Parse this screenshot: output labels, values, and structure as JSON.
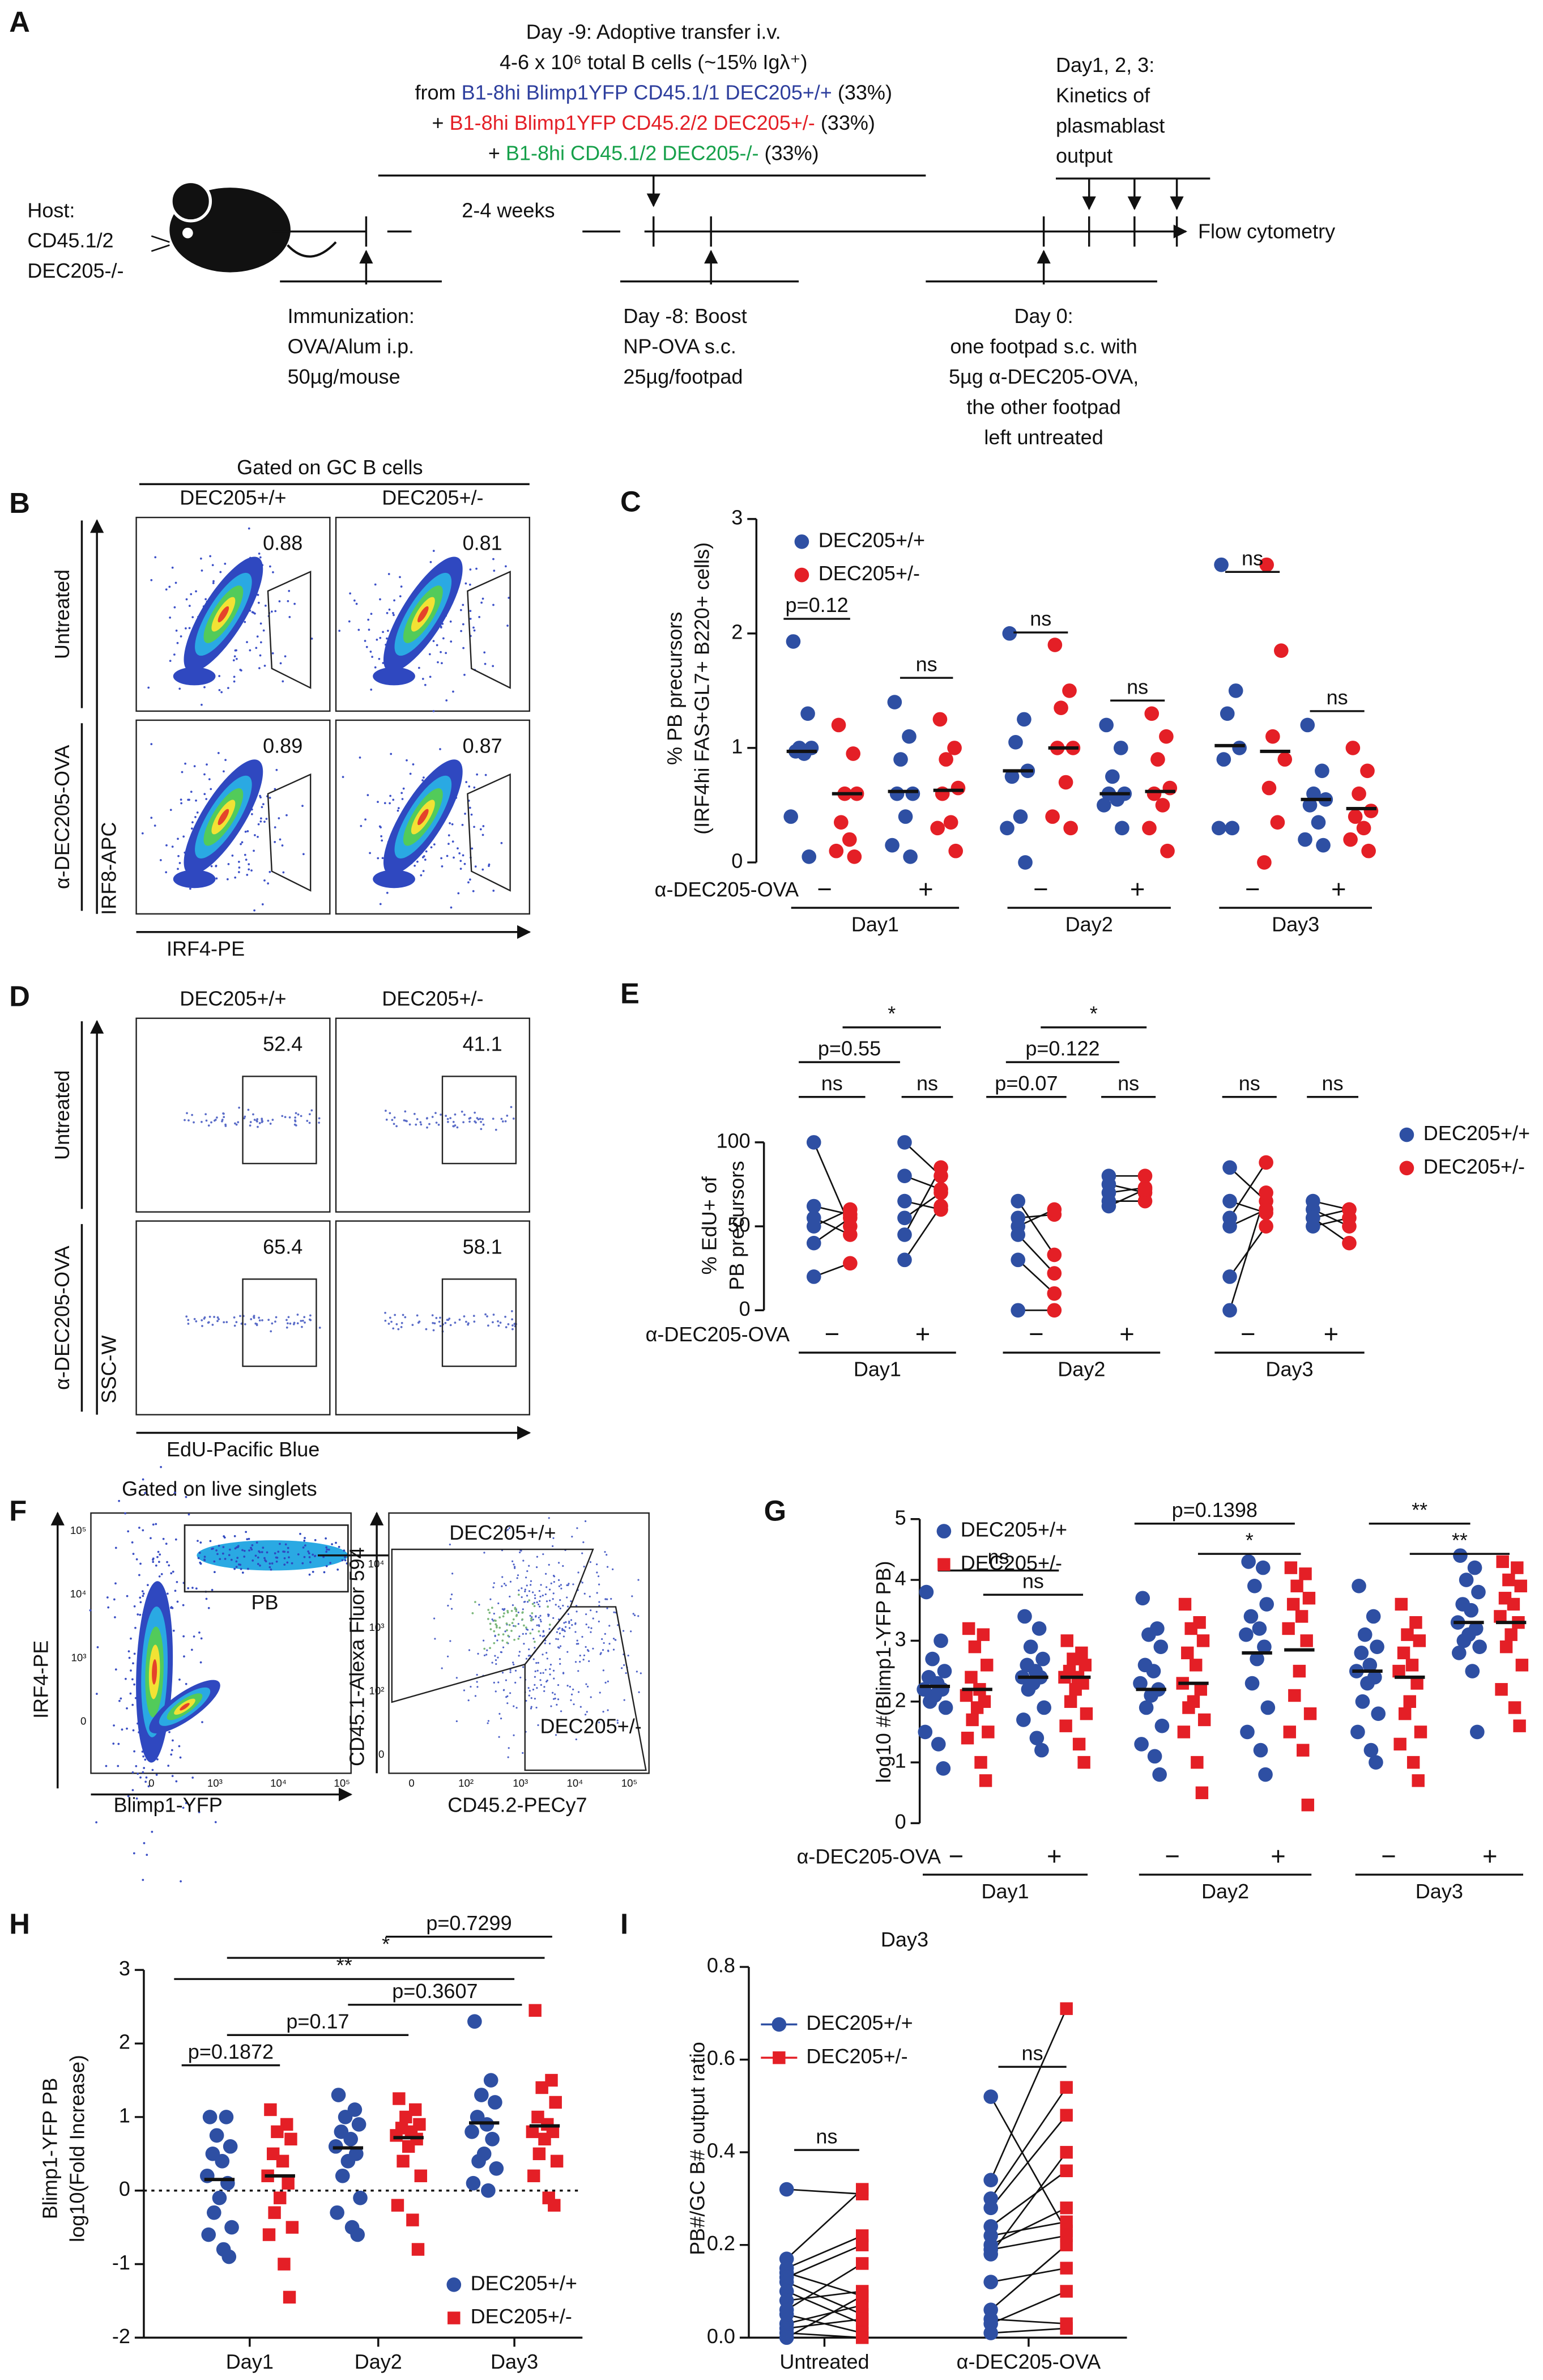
{
  "panel_a": {
    "label": "A",
    "transfer": [
      [
        {
          "text": "Day -9: Adoptive transfer i.v."
        }
      ],
      [
        {
          "text": "4-6 x 10⁶ total B cells (~15% Igλ⁺)"
        }
      ],
      [
        {
          "text": "from "
        },
        {
          "text": "B1-8hi Blimp1YFP CD45.1/1 DEC205+/+",
          "color": "#2e3f9e"
        },
        {
          "text": " (33%)"
        }
      ],
      [
        {
          "text": "+ "
        },
        {
          "text": "B1-8hi Blimp1YFP CD45.2/2 DEC205+/-",
          "color": "#e41f26"
        },
        {
          "text": " (33%)"
        }
      ],
      [
        {
          "text": "+ "
        },
        {
          "text": "B1-8hi CD45.1/2 DEC205-/-",
          "color": "#16a04a"
        },
        {
          "text": " (33%)"
        }
      ]
    ],
    "kinetics": [
      "Day1, 2, 3:",
      "Kinetics of",
      "plasmablast",
      "output"
    ],
    "host": [
      "Host:",
      "CD45.1/2",
      "DEC205-/-"
    ],
    "interval": "2-4 weeks",
    "readout": "Flow cytometry",
    "immunization": [
      "Immunization:",
      "OVA/Alum i.p.",
      "50µg/mouse"
    ],
    "boost": [
      "Day -8: Boost",
      "NP-OVA s.c.",
      "25µg/footpad"
    ],
    "day0": [
      "Day 0:",
      "one footpad s.c. with",
      "5µg α-DEC205-OVA,",
      "the other footpad",
      "left untreated"
    ]
  },
  "panel_b": {
    "label": "B",
    "title": "Gated on GC B cells",
    "columns": [
      "DEC205+/+",
      "DEC205+/-"
    ],
    "rows": [
      "Untreated",
      "α-DEC205-OVA"
    ],
    "y_axis": "IRF8-APC",
    "x_axis": "IRF4-PE",
    "gate_percent": [
      [
        0.88,
        0.81
      ],
      [
        0.89,
        0.87
      ]
    ]
  },
  "panel_d": {
    "label": "D",
    "columns": [
      "DEC205+/+",
      "DEC205+/-"
    ],
    "rows": [
      "Untreated",
      "α-DEC205-OVA"
    ],
    "y_axis": "SSC-W",
    "x_axis": "EdU-Pacific Blue",
    "gate_percent": [
      [
        52.4,
        41.1
      ],
      [
        65.4,
        58.1
      ]
    ]
  },
  "panel_f": {
    "label": "F",
    "title": "Gated on live singlets",
    "left": {
      "y_axis": "IRF4-PE",
      "x_axis": "Blimp1-YFP",
      "gate": "PB",
      "yticks": [
        "10⁵",
        "10⁴",
        "10³",
        "0"
      ],
      "xticks": [
        "0",
        "10³",
        "10⁴",
        "10⁵"
      ]
    },
    "right": {
      "y_axis": "CD45.1-Alexa Fluor 594",
      "x_axis": "CD45.2-PECy7",
      "gates": [
        "DEC205+/+",
        "DEC205+/-"
      ],
      "yticks": [
        "10⁴",
        "10³",
        "10²",
        "0"
      ],
      "xticks": [
        "0",
        "10²",
        "10³",
        "10⁴",
        "10⁵"
      ]
    }
  },
  "chart_data": [
    {
      "type": "strip",
      "label": "C",
      "y_label": [
        "% PB precursors",
        "(IRF4hi FAS+GL7+ B220+ cells)"
      ],
      "ylim": [
        0,
        3
      ],
      "yticks": [
        0,
        1,
        2,
        3
      ],
      "treatment_label": "α-DEC205-OVA",
      "treatment": [
        "−",
        "+",
        "−",
        "+",
        "−",
        "+"
      ],
      "days": [
        "Day1",
        "Day2",
        "Day3"
      ],
      "series": [
        {
          "name": "DEC205+/+",
          "color": "#2e4fa3",
          "marker": "circle",
          "values": [
            [
              1.93,
              1.3,
              1.0,
              1.0,
              0.97,
              0.95,
              0.4,
              0.05
            ],
            [
              1.4,
              1.1,
              0.9,
              0.6,
              0.6,
              0.4,
              0.15,
              0.05
            ],
            [
              2.0,
              1.25,
              1.05,
              0.8,
              0.75,
              0.4,
              0.3,
              0.0
            ],
            [
              1.2,
              1.0,
              0.75,
              0.6,
              0.6,
              0.55,
              0.5,
              0.3
            ],
            [
              2.6,
              1.5,
              1.3,
              1.0,
              0.9,
              0.3,
              0.3
            ],
            [
              1.2,
              0.8,
              0.6,
              0.55,
              0.5,
              0.35,
              0.2,
              0.15
            ]
          ],
          "medians": [
            0.97,
            0.62,
            0.8,
            0.6,
            1.02,
            0.55
          ]
        },
        {
          "name": "DEC205+/-",
          "color": "#e41f26",
          "marker": "circle",
          "values": [
            [
              1.2,
              0.95,
              0.6,
              0.6,
              0.35,
              0.2,
              0.1,
              0.05
            ],
            [
              1.25,
              1.0,
              0.9,
              0.65,
              0.6,
              0.35,
              0.3,
              0.1
            ],
            [
              1.9,
              1.5,
              1.35,
              1.0,
              1.0,
              0.7,
              0.4,
              0.3
            ],
            [
              1.3,
              1.1,
              0.9,
              0.65,
              0.6,
              0.5,
              0.3,
              0.1
            ],
            [
              2.6,
              1.85,
              1.1,
              0.9,
              0.65,
              0.35,
              0.0
            ],
            [
              1.0,
              0.8,
              0.6,
              0.45,
              0.4,
              0.3,
              0.2,
              0.1
            ]
          ],
          "medians": [
            0.6,
            0.63,
            1.0,
            0.62,
            0.97,
            0.47
          ]
        }
      ],
      "annotations": [
        "p=0.12",
        "ns",
        "ns",
        "ns",
        "ns",
        "ns"
      ]
    },
    {
      "type": "paired-dot",
      "label": "E",
      "y_label": [
        "% EdU+ of",
        "PB precursors"
      ],
      "ylim": [
        0,
        100
      ],
      "yticks": [
        0,
        50,
        100
      ],
      "treatment_label": "α-DEC205-OVA",
      "treatment": [
        "−",
        "+",
        "−",
        "+",
        "−",
        "+"
      ],
      "days": [
        "Day1",
        "Day2",
        "Day3"
      ],
      "series": [
        {
          "name": "DEC205+/+",
          "color": "#2e4fa3",
          "marker": "circle",
          "values": [
            [
              100,
              62,
              55,
              50,
              40,
              20
            ],
            [
              100,
              80,
              65,
              55,
              45,
              30
            ],
            [
              65,
              55,
              50,
              45,
              30,
              0
            ],
            [
              80,
              75,
              70,
              65,
              62
            ],
            [
              85,
              65,
              55,
              50,
              20,
              0
            ],
            [
              65,
              60,
              55,
              55,
              50
            ]
          ]
        },
        {
          "name": "DEC205+/-",
          "color": "#e41f26",
          "marker": "circle",
          "values": [
            [
              50,
              57,
              45,
              60,
              55,
              28
            ],
            [
              80,
              72,
              60,
              70,
              85,
              62
            ],
            [
              33,
              57,
              60,
              22,
              10,
              0
            ],
            [
              80,
              70,
              73,
              65,
              72
            ],
            [
              65,
              58,
              88,
              60,
              50,
              70
            ],
            [
              60,
              50,
              40,
              60,
              55
            ]
          ]
        }
      ],
      "annotations": [
        "*",
        "p=0.55",
        "ns",
        "ns",
        "*",
        "p=0.122",
        "p=0.07",
        "ns",
        "ns",
        "ns"
      ]
    },
    {
      "type": "strip",
      "label": "G",
      "y_label": [
        "log10 #(Blimp1-YFP PB)"
      ],
      "ylim": [
        0,
        5
      ],
      "yticks": [
        0,
        1,
        2,
        3,
        4,
        5
      ],
      "treatment_label": "α-DEC205-OVA",
      "treatment": [
        "−",
        "+",
        "−",
        "+",
        "−",
        "+"
      ],
      "days": [
        "Day1",
        "Day2",
        "Day3"
      ],
      "series": [
        {
          "name": "DEC205+/+",
          "color": "#2e4fa3",
          "marker": "circle",
          "values": [
            [
              3.8,
              3.0,
              2.7,
              2.5,
              2.4,
              2.3,
              2.2,
              2.2,
              2.1,
              2.0,
              1.9,
              1.5,
              1.3,
              0.9
            ],
            [
              3.4,
              3.2,
              2.9,
              2.7,
              2.6,
              2.5,
              2.4,
              2.4,
              2.3,
              2.2,
              1.9,
              1.7,
              1.4,
              1.2
            ],
            [
              3.7,
              3.2,
              3.1,
              2.9,
              2.6,
              2.5,
              2.3,
              2.2,
              2.1,
              1.9,
              1.6,
              1.3,
              1.1,
              0.8
            ],
            [
              4.3,
              4.2,
              3.9,
              3.6,
              3.4,
              3.2,
              3.1,
              2.9,
              2.7,
              2.3,
              1.9,
              1.5,
              1.2,
              0.8
            ],
            [
              3.9,
              3.4,
              3.1,
              2.9,
              2.8,
              2.6,
              2.5,
              2.4,
              2.3,
              2.0,
              1.8,
              1.5,
              1.2,
              1.0
            ],
            [
              4.4,
              4.2,
              4.0,
              3.8,
              3.6,
              3.5,
              3.3,
              3.2,
              3.1,
              3.0,
              2.9,
              2.8,
              2.5,
              1.5
            ]
          ],
          "medians": [
            2.25,
            2.4,
            2.2,
            2.8,
            2.5,
            3.3
          ]
        },
        {
          "name": "DEC205+/-",
          "color": "#e41f26",
          "marker": "square",
          "values": [
            [
              3.2,
              3.1,
              2.9,
              2.6,
              2.4,
              2.2,
              2.1,
              2.0,
              1.9,
              1.7,
              1.5,
              1.4,
              1.0,
              0.7
            ],
            [
              3.0,
              2.8,
              2.7,
              2.6,
              2.5,
              2.4,
              2.4,
              2.3,
              2.2,
              2.0,
              1.8,
              1.6,
              1.3,
              1.0
            ],
            [
              3.6,
              3.3,
              3.2,
              3.0,
              2.8,
              2.6,
              2.3,
              2.2,
              2.0,
              1.9,
              1.7,
              1.5,
              1.0,
              0.5
            ],
            [
              4.2,
              4.1,
              3.9,
              3.7,
              3.6,
              3.4,
              3.2,
              3.0,
              2.5,
              2.1,
              1.8,
              1.5,
              1.2,
              0.3
            ],
            [
              3.6,
              3.3,
              3.1,
              3.0,
              2.8,
              2.6,
              2.5,
              2.3,
              2.0,
              1.8,
              1.5,
              1.3,
              1.0,
              0.7
            ],
            [
              4.3,
              4.2,
              4.0,
              3.9,
              3.7,
              3.6,
              3.4,
              3.3,
              3.1,
              2.9,
              2.6,
              2.2,
              1.9,
              1.6
            ]
          ],
          "medians": [
            2.2,
            2.4,
            2.3,
            2.85,
            2.4,
            3.3
          ]
        }
      ],
      "annotations": [
        "ns",
        "ns",
        "p=0.1398",
        "*",
        "**",
        "**"
      ]
    },
    {
      "type": "strip",
      "label": "H",
      "y_label": [
        "Blimp1-YFP PB",
        "log10(Fold Increase)"
      ],
      "ylim": [
        -2,
        3
      ],
      "yticks": [
        -2,
        -1,
        0,
        1,
        2,
        3
      ],
      "zero_line": true,
      "categories": [
        "Day1",
        "Day2",
        "Day3"
      ],
      "series": [
        {
          "name": "DEC205+/+",
          "color": "#2e4fa3",
          "marker": "circle",
          "values": [
            [
              1.0,
              1.0,
              0.75,
              0.6,
              0.5,
              0.4,
              0.2,
              0.1,
              -0.1,
              -0.3,
              -0.5,
              -0.6,
              -0.8,
              -0.9
            ],
            [
              1.3,
              1.1,
              1.0,
              0.9,
              0.8,
              0.7,
              0.6,
              0.5,
              0.4,
              0.2,
              -0.1,
              -0.3,
              -0.5,
              -0.6
            ],
            [
              2.3,
              1.5,
              1.3,
              1.2,
              1.0,
              0.9,
              0.8,
              0.7,
              0.5,
              0.4,
              0.3,
              0.1,
              0.0
            ]
          ],
          "medians": [
            0.15,
            0.58,
            0.92
          ]
        },
        {
          "name": "DEC205+/-",
          "color": "#e41f26",
          "marker": "square",
          "values": [
            [
              1.1,
              0.9,
              0.8,
              0.7,
              0.5,
              0.4,
              0.2,
              0.1,
              -0.1,
              -0.3,
              -0.5,
              -0.6,
              -1.0,
              -1.45
            ],
            [
              1.25,
              1.1,
              1.0,
              0.9,
              0.85,
              0.8,
              0.75,
              0.7,
              0.6,
              0.4,
              0.2,
              -0.2,
              -0.4,
              -0.8
            ],
            [
              2.45,
              1.5,
              1.4,
              1.2,
              1.0,
              0.9,
              0.8,
              0.8,
              0.7,
              0.5,
              0.4,
              0.2,
              -0.1,
              -0.2
            ]
          ],
          "medians": [
            0.2,
            0.72,
            0.88
          ]
        }
      ],
      "annotations": [
        "p=0.7299",
        "*",
        "**",
        "p=0.3607",
        "p=0.17",
        "p=0.1872"
      ]
    },
    {
      "type": "paired-dot",
      "label": "I",
      "title": "Day3",
      "y_label": [
        "PB#/GC B# output ratio"
      ],
      "ylim": [
        0,
        0.8
      ],
      "yticks": [
        {
          "value": 0,
          "label": "0.0"
        },
        0.2,
        0.4,
        0.6,
        0.8
      ],
      "categories": [
        "Untreated",
        "α-DEC205-OVA"
      ],
      "series": [
        {
          "name": "DEC205+/+",
          "color": "#2e4fa3",
          "marker": "circle",
          "values": [
            [
              0.32,
              0.17,
              0.15,
              0.14,
              0.13,
              0.12,
              0.1,
              0.08,
              0.06,
              0.05,
              0.03,
              0.02,
              0.01,
              0.0
            ],
            [
              0.52,
              0.34,
              0.3,
              0.28,
              0.24,
              0.22,
              0.2,
              0.19,
              0.18,
              0.12,
              0.06,
              0.04,
              0.03,
              0.01
            ]
          ]
        },
        {
          "name": "DEC205+/-",
          "color": "#e41f26",
          "marker": "square",
          "values": [
            [
              0.31,
              0.32,
              0.22,
              0.09,
              0.2,
              0.05,
              0.03,
              0.1,
              0.16,
              0.01,
              0.07,
              0.04,
              0.0,
              0.09
            ],
            [
              0.23,
              0.71,
              0.54,
              0.48,
              0.36,
              0.25,
              0.28,
              0.22,
              0.4,
              0.15,
              0.2,
              0.03,
              0.1,
              0.02
            ]
          ]
        }
      ],
      "annotations": [
        "ns",
        "ns"
      ]
    }
  ]
}
